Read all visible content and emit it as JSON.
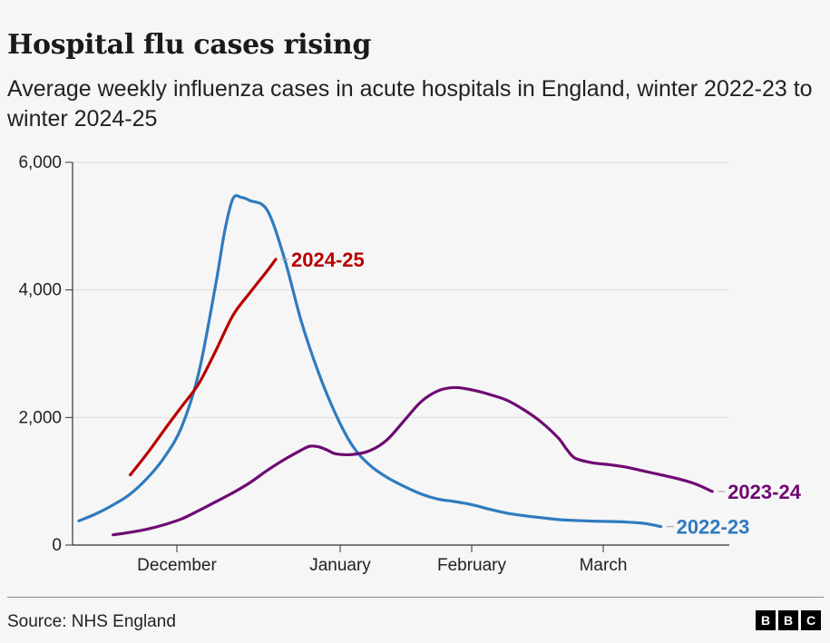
{
  "chart_data": {
    "type": "line",
    "title": "Hospital flu cases rising",
    "subtitle": "Average weekly influenza cases in acute hospitals in England, winter 2022-23 to winter 2024-25",
    "xlabel": "",
    "ylabel": "",
    "x_ticks": [
      "December",
      "January",
      "February",
      "March"
    ],
    "y_ticks": [
      "0",
      "2,000",
      "4,000",
      "6,000"
    ],
    "ylim": [
      0,
      6000
    ],
    "grid": true,
    "series": [
      {
        "name": "2022-23",
        "color": "#2f7bbf",
        "points": [
          [
            0.0,
            380
          ],
          [
            1.0,
            490
          ],
          [
            2.0,
            630
          ],
          [
            3.0,
            800
          ],
          [
            4.0,
            1050
          ],
          [
            5.0,
            1380
          ],
          [
            6.0,
            1850
          ],
          [
            7.0,
            2700
          ],
          [
            8.0,
            4100
          ],
          [
            8.5,
            4900
          ],
          [
            9.0,
            5430
          ],
          [
            9.5,
            5450
          ],
          [
            10.0,
            5400
          ],
          [
            11.0,
            5250
          ],
          [
            12.0,
            4500
          ],
          [
            13.0,
            3500
          ],
          [
            14.0,
            2700
          ],
          [
            15.0,
            2050
          ],
          [
            16.0,
            1550
          ],
          [
            17.0,
            1250
          ],
          [
            18.0,
            1060
          ],
          [
            19.0,
            920
          ],
          [
            20.0,
            800
          ],
          [
            21.0,
            720
          ],
          [
            22.0,
            680
          ],
          [
            23.0,
            630
          ],
          [
            24.0,
            560
          ],
          [
            25.0,
            500
          ],
          [
            26.0,
            460
          ],
          [
            27.0,
            430
          ],
          [
            28.0,
            400
          ],
          [
            29.0,
            385
          ],
          [
            30.0,
            375
          ],
          [
            31.0,
            370
          ],
          [
            32.0,
            360
          ],
          [
            33.0,
            340
          ],
          [
            34.0,
            290
          ]
        ]
      },
      {
        "name": "2023-24",
        "color": "#6e0a72",
        "points": [
          [
            2.0,
            160
          ],
          [
            3.0,
            200
          ],
          [
            4.0,
            250
          ],
          [
            5.0,
            320
          ],
          [
            6.0,
            410
          ],
          [
            7.0,
            540
          ],
          [
            8.0,
            680
          ],
          [
            9.0,
            820
          ],
          [
            10.0,
            980
          ],
          [
            11.0,
            1170
          ],
          [
            12.0,
            1340
          ],
          [
            13.0,
            1490
          ],
          [
            13.5,
            1550
          ],
          [
            14.0,
            1540
          ],
          [
            14.5,
            1490
          ],
          [
            15.0,
            1430
          ],
          [
            16.0,
            1420
          ],
          [
            17.0,
            1480
          ],
          [
            18.0,
            1650
          ],
          [
            19.0,
            1950
          ],
          [
            20.0,
            2250
          ],
          [
            21.0,
            2420
          ],
          [
            22.0,
            2470
          ],
          [
            23.0,
            2430
          ],
          [
            24.0,
            2360
          ],
          [
            25.0,
            2270
          ],
          [
            26.0,
            2120
          ],
          [
            27.0,
            1930
          ],
          [
            28.0,
            1680
          ],
          [
            28.5,
            1500
          ],
          [
            29.0,
            1360
          ],
          [
            30.0,
            1290
          ],
          [
            31.0,
            1260
          ],
          [
            32.0,
            1220
          ],
          [
            33.0,
            1160
          ],
          [
            34.0,
            1100
          ],
          [
            35.0,
            1040
          ],
          [
            36.0,
            960
          ],
          [
            37.0,
            840
          ]
        ]
      },
      {
        "name": "2024-25",
        "color": "#b80000",
        "points": [
          [
            3.0,
            1100
          ],
          [
            4.0,
            1440
          ],
          [
            5.0,
            1810
          ],
          [
            6.0,
            2170
          ],
          [
            7.0,
            2530
          ],
          [
            8.0,
            3050
          ],
          [
            9.0,
            3600
          ],
          [
            10.0,
            3960
          ],
          [
            11.0,
            4300
          ],
          [
            11.5,
            4480
          ]
        ]
      }
    ]
  },
  "source": "Source: NHS England",
  "logo": [
    "B",
    "B",
    "C"
  ]
}
